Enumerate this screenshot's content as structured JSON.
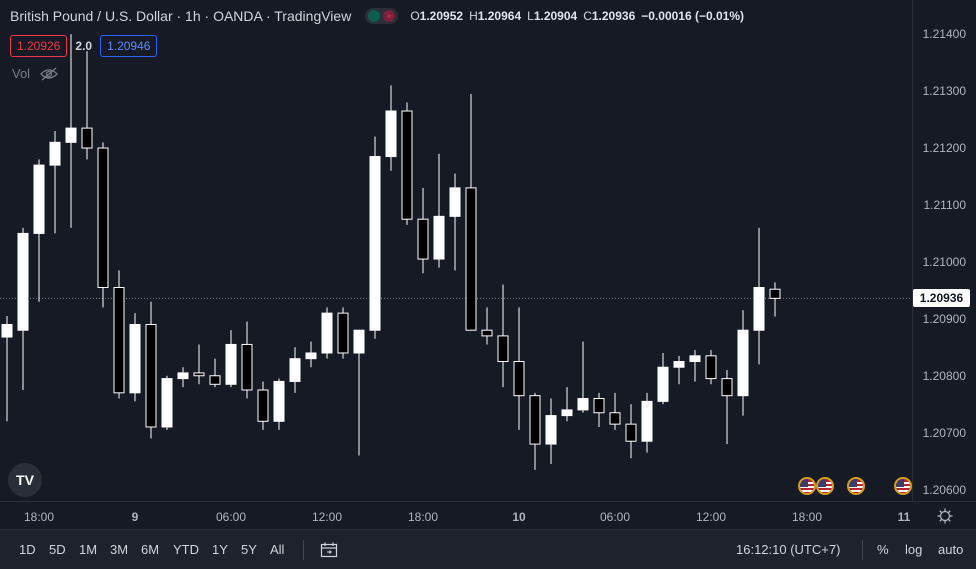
{
  "legend": {
    "title": "British Pound / U.S. Dollar · 1h · OANDA · TradingView",
    "market_status_icon": "market-open-icon",
    "ohlc": [
      {
        "k": "O",
        "v": "1.20952"
      },
      {
        "k": "H",
        "v": "1.20964"
      },
      {
        "k": "L",
        "v": "1.20904"
      },
      {
        "k": "C",
        "v": "1.20936"
      }
    ],
    "change": "−0.00016 (−0.01%)"
  },
  "price_boxes": {
    "bid": "1.20926",
    "spread": "2.0",
    "ask": "1.20946"
  },
  "volume_label": "Vol",
  "last_price": "1.20936",
  "logo_text": "TV",
  "colors": {
    "up": "#ffffff",
    "down": "#000000",
    "wick": "#ffffff",
    "bg": "#161a25",
    "accent": "#2962ff",
    "bid": "#f23645"
  },
  "time_labels": [
    "18:00",
    "9",
    "06:00",
    "12:00",
    "18:00",
    "10",
    "06:00",
    "12:00",
    "18:00",
    "11"
  ],
  "bottom": {
    "ranges": [
      "1D",
      "5D",
      "1M",
      "3M",
      "6M",
      "YTD",
      "1Y",
      "5Y",
      "All"
    ],
    "clock": "16:12:10 (UTC+7)",
    "percent": "%",
    "log": "log",
    "auto": "auto"
  },
  "chart_data": {
    "type": "candlestick",
    "symbol": "GBPUSD",
    "interval": "1h",
    "ylim": [
      1.2058,
      1.2146
    ],
    "y_ticks": [
      "1.21400",
      "1.21300",
      "1.21200",
      "1.21100",
      "1.21000",
      "1.20900",
      "1.20800",
      "1.20700",
      "1.20600"
    ],
    "candles": [
      {
        "o": 1.20868,
        "h": 1.20905,
        "l": 1.2072,
        "c": 1.2089
      },
      {
        "o": 1.2088,
        "h": 1.2106,
        "l": 1.20775,
        "c": 1.2105
      },
      {
        "o": 1.2105,
        "h": 1.2118,
        "l": 1.2093,
        "c": 1.2117
      },
      {
        "o": 1.2117,
        "h": 1.2123,
        "l": 1.2105,
        "c": 1.2121
      },
      {
        "o": 1.2121,
        "h": 1.214,
        "l": 1.2106,
        "c": 1.21235
      },
      {
        "o": 1.21235,
        "h": 1.2137,
        "l": 1.2118,
        "c": 1.212
      },
      {
        "o": 1.212,
        "h": 1.2121,
        "l": 1.2092,
        "c": 1.20955
      },
      {
        "o": 1.20955,
        "h": 1.20985,
        "l": 1.2076,
        "c": 1.2077
      },
      {
        "o": 1.2077,
        "h": 1.2091,
        "l": 1.20755,
        "c": 1.2089
      },
      {
        "o": 1.2089,
        "h": 1.2093,
        "l": 1.2069,
        "c": 1.2071
      },
      {
        "o": 1.2071,
        "h": 1.208,
        "l": 1.20705,
        "c": 1.20795
      },
      {
        "o": 1.20795,
        "h": 1.20815,
        "l": 1.2078,
        "c": 1.20805
      },
      {
        "o": 1.20805,
        "h": 1.20855,
        "l": 1.20785,
        "c": 1.208
      },
      {
        "o": 1.208,
        "h": 1.2083,
        "l": 1.2078,
        "c": 1.20785
      },
      {
        "o": 1.20785,
        "h": 1.2088,
        "l": 1.2078,
        "c": 1.20855
      },
      {
        "o": 1.20855,
        "h": 1.20895,
        "l": 1.2076,
        "c": 1.20775
      },
      {
        "o": 1.20775,
        "h": 1.2079,
        "l": 1.20705,
        "c": 1.2072
      },
      {
        "o": 1.2072,
        "h": 1.20795,
        "l": 1.20705,
        "c": 1.2079
      },
      {
        "o": 1.2079,
        "h": 1.2085,
        "l": 1.2077,
        "c": 1.2083
      },
      {
        "o": 1.2083,
        "h": 1.2086,
        "l": 1.20815,
        "c": 1.2084
      },
      {
        "o": 1.2084,
        "h": 1.2092,
        "l": 1.2083,
        "c": 1.2091
      },
      {
        "o": 1.2091,
        "h": 1.2092,
        "l": 1.2083,
        "c": 1.2084
      },
      {
        "o": 1.2084,
        "h": 1.2088,
        "l": 1.2066,
        "c": 1.2088
      },
      {
        "o": 1.2088,
        "h": 1.2122,
        "l": 1.20865,
        "c": 1.21185
      },
      {
        "o": 1.21185,
        "h": 1.2131,
        "l": 1.2116,
        "c": 1.21265
      },
      {
        "o": 1.21265,
        "h": 1.2128,
        "l": 1.21065,
        "c": 1.21075
      },
      {
        "o": 1.21075,
        "h": 1.2113,
        "l": 1.2098,
        "c": 1.21005
      },
      {
        "o": 1.21005,
        "h": 1.2119,
        "l": 1.2099,
        "c": 1.2108
      },
      {
        "o": 1.2108,
        "h": 1.21155,
        "l": 1.20985,
        "c": 1.2113
      },
      {
        "o": 1.2113,
        "h": 1.21295,
        "l": 1.2088,
        "c": 1.2088
      },
      {
        "o": 1.2088,
        "h": 1.2092,
        "l": 1.20855,
        "c": 1.2087
      },
      {
        "o": 1.2087,
        "h": 1.2096,
        "l": 1.2078,
        "c": 1.20825
      },
      {
        "o": 1.20825,
        "h": 1.2092,
        "l": 1.20705,
        "c": 1.20765
      },
      {
        "o": 1.20765,
        "h": 1.2077,
        "l": 1.20635,
        "c": 1.2068
      },
      {
        "o": 1.2068,
        "h": 1.2076,
        "l": 1.20645,
        "c": 1.2073
      },
      {
        "o": 1.2073,
        "h": 1.2078,
        "l": 1.2072,
        "c": 1.2074
      },
      {
        "o": 1.2074,
        "h": 1.2086,
        "l": 1.20735,
        "c": 1.2076
      },
      {
        "o": 1.2076,
        "h": 1.2077,
        "l": 1.2071,
        "c": 1.20735
      },
      {
        "o": 1.20735,
        "h": 1.2077,
        "l": 1.20705,
        "c": 1.20715
      },
      {
        "o": 1.20715,
        "h": 1.2075,
        "l": 1.20655,
        "c": 1.20685
      },
      {
        "o": 1.20685,
        "h": 1.2077,
        "l": 1.20665,
        "c": 1.20755
      },
      {
        "o": 1.20755,
        "h": 1.2084,
        "l": 1.2075,
        "c": 1.20815
      },
      {
        "o": 1.20815,
        "h": 1.20835,
        "l": 1.20785,
        "c": 1.20825
      },
      {
        "o": 1.20825,
        "h": 1.20845,
        "l": 1.2079,
        "c": 1.20835
      },
      {
        "o": 1.20835,
        "h": 1.20845,
        "l": 1.20785,
        "c": 1.20795
      },
      {
        "o": 1.20795,
        "h": 1.2081,
        "l": 1.2068,
        "c": 1.20765
      },
      {
        "o": 1.20765,
        "h": 1.20915,
        "l": 1.2073,
        "c": 1.2088
      },
      {
        "o": 1.2088,
        "h": 1.2106,
        "l": 1.2082,
        "c": 1.20955
      },
      {
        "o": 1.20952,
        "h": 1.20964,
        "l": 1.20904,
        "c": 1.20936
      }
    ]
  }
}
